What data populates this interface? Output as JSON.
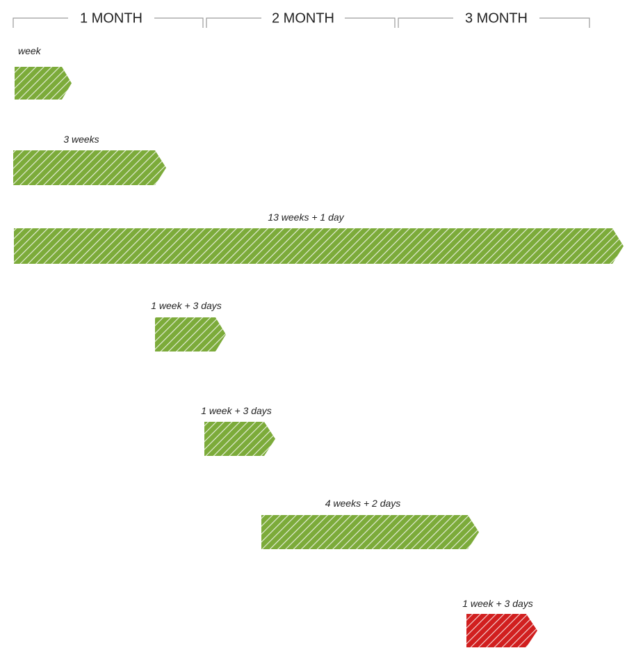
{
  "timeline": {
    "months": [
      {
        "label": "1 MONTH"
      },
      {
        "label": "2 MONTH"
      },
      {
        "label": "3 MONTH"
      }
    ],
    "bars": [
      {
        "label": "week",
        "color": "#7cab3a",
        "status": "normal"
      },
      {
        "label": "3 weeks",
        "color": "#7cab3a",
        "status": "normal"
      },
      {
        "label": "13 weeks + 1 day",
        "color": "#7cab3a",
        "status": "normal"
      },
      {
        "label": "1 week + 3 days",
        "color": "#7cab3a",
        "status": "normal"
      },
      {
        "label": "1 week + 3 days",
        "color": "#7cab3a",
        "status": "normal"
      },
      {
        "label": "4 weeks + 2 days",
        "color": "#7cab3a",
        "status": "normal"
      },
      {
        "label": "1 week + 3 days",
        "color": "#d11f1f",
        "status": "alert"
      }
    ],
    "hatch_color": "#ffffff"
  }
}
